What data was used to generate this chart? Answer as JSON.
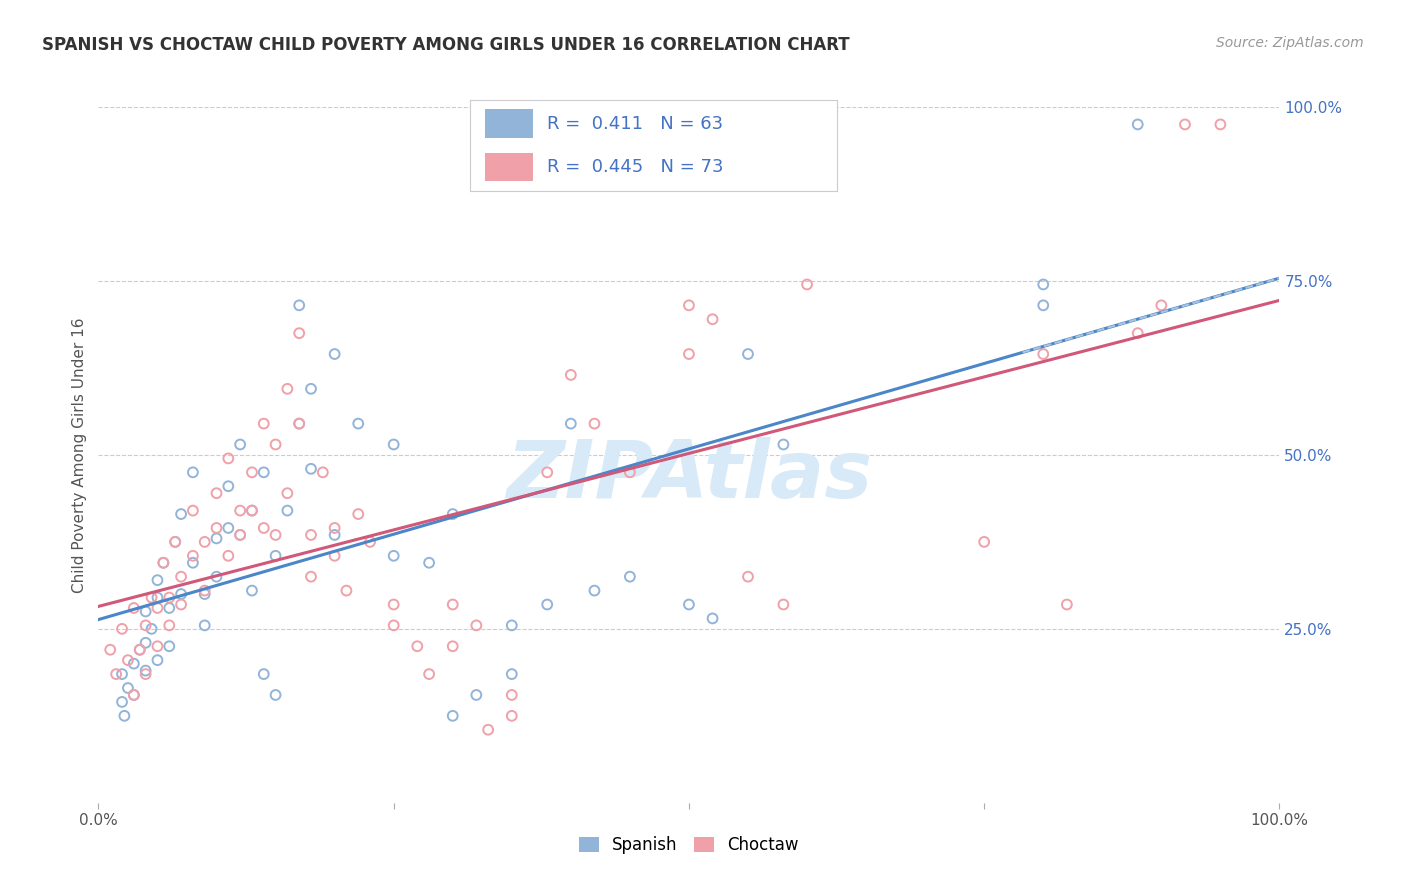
{
  "title": "SPANISH VS CHOCTAW CHILD POVERTY AMONG GIRLS UNDER 16 CORRELATION CHART",
  "source": "Source: ZipAtlas.com",
  "ylabel": "Child Poverty Among Girls Under 16",
  "xlim": [
    0,
    1
  ],
  "ylim": [
    0,
    1
  ],
  "ytick_labels_right": [
    "25.0%",
    "50.0%",
    "75.0%",
    "100.0%"
  ],
  "ytick_vals_right": [
    0.25,
    0.5,
    0.75,
    1.0
  ],
  "spanish_R": 0.411,
  "spanish_N": 63,
  "choctaw_R": 0.445,
  "choctaw_N": 73,
  "spanish_color": "#92b4d8",
  "choctaw_color": "#f0a0a8",
  "trend_spanish_color": "#4a86c8",
  "trend_choctaw_color": "#d05878",
  "trend_dashed_color": "#aac4dd",
  "label_blue": "#4472c4",
  "watermark_color": "#d8eaf8",
  "background_color": "#ffffff",
  "spanish_points": [
    [
      0.02,
      0.185
    ],
    [
      0.02,
      0.145
    ],
    [
      0.022,
      0.125
    ],
    [
      0.025,
      0.165
    ],
    [
      0.03,
      0.2
    ],
    [
      0.03,
      0.155
    ],
    [
      0.035,
      0.22
    ],
    [
      0.04,
      0.275
    ],
    [
      0.04,
      0.23
    ],
    [
      0.04,
      0.19
    ],
    [
      0.045,
      0.25
    ],
    [
      0.05,
      0.295
    ],
    [
      0.05,
      0.205
    ],
    [
      0.05,
      0.32
    ],
    [
      0.055,
      0.345
    ],
    [
      0.06,
      0.28
    ],
    [
      0.06,
      0.225
    ],
    [
      0.065,
      0.375
    ],
    [
      0.07,
      0.415
    ],
    [
      0.07,
      0.3
    ],
    [
      0.08,
      0.475
    ],
    [
      0.08,
      0.345
    ],
    [
      0.09,
      0.3
    ],
    [
      0.09,
      0.255
    ],
    [
      0.1,
      0.38
    ],
    [
      0.1,
      0.325
    ],
    [
      0.11,
      0.455
    ],
    [
      0.11,
      0.395
    ],
    [
      0.12,
      0.385
    ],
    [
      0.12,
      0.515
    ],
    [
      0.13,
      0.42
    ],
    [
      0.13,
      0.305
    ],
    [
      0.14,
      0.475
    ],
    [
      0.14,
      0.185
    ],
    [
      0.15,
      0.155
    ],
    [
      0.15,
      0.355
    ],
    [
      0.16,
      0.42
    ],
    [
      0.17,
      0.715
    ],
    [
      0.17,
      0.545
    ],
    [
      0.18,
      0.48
    ],
    [
      0.18,
      0.595
    ],
    [
      0.2,
      0.385
    ],
    [
      0.2,
      0.645
    ],
    [
      0.22,
      0.545
    ],
    [
      0.25,
      0.515
    ],
    [
      0.25,
      0.355
    ],
    [
      0.28,
      0.345
    ],
    [
      0.3,
      0.415
    ],
    [
      0.3,
      0.125
    ],
    [
      0.32,
      0.155
    ],
    [
      0.35,
      0.185
    ],
    [
      0.35,
      0.255
    ],
    [
      0.38,
      0.285
    ],
    [
      0.4,
      0.545
    ],
    [
      0.42,
      0.305
    ],
    [
      0.45,
      0.325
    ],
    [
      0.5,
      0.285
    ],
    [
      0.52,
      0.265
    ],
    [
      0.55,
      0.645
    ],
    [
      0.58,
      0.515
    ],
    [
      0.8,
      0.715
    ],
    [
      0.8,
      0.745
    ],
    [
      0.88,
      0.975
    ]
  ],
  "choctaw_points": [
    [
      0.01,
      0.22
    ],
    [
      0.015,
      0.185
    ],
    [
      0.02,
      0.25
    ],
    [
      0.025,
      0.205
    ],
    [
      0.03,
      0.28
    ],
    [
      0.03,
      0.155
    ],
    [
      0.035,
      0.22
    ],
    [
      0.04,
      0.185
    ],
    [
      0.04,
      0.255
    ],
    [
      0.045,
      0.295
    ],
    [
      0.05,
      0.225
    ],
    [
      0.05,
      0.28
    ],
    [
      0.055,
      0.345
    ],
    [
      0.06,
      0.295
    ],
    [
      0.06,
      0.255
    ],
    [
      0.065,
      0.375
    ],
    [
      0.07,
      0.325
    ],
    [
      0.07,
      0.285
    ],
    [
      0.08,
      0.42
    ],
    [
      0.08,
      0.355
    ],
    [
      0.09,
      0.375
    ],
    [
      0.09,
      0.305
    ],
    [
      0.1,
      0.445
    ],
    [
      0.1,
      0.395
    ],
    [
      0.11,
      0.495
    ],
    [
      0.11,
      0.355
    ],
    [
      0.12,
      0.42
    ],
    [
      0.12,
      0.385
    ],
    [
      0.13,
      0.475
    ],
    [
      0.13,
      0.42
    ],
    [
      0.14,
      0.545
    ],
    [
      0.14,
      0.395
    ],
    [
      0.15,
      0.515
    ],
    [
      0.15,
      0.385
    ],
    [
      0.16,
      0.595
    ],
    [
      0.16,
      0.445
    ],
    [
      0.17,
      0.675
    ],
    [
      0.17,
      0.545
    ],
    [
      0.18,
      0.385
    ],
    [
      0.18,
      0.325
    ],
    [
      0.19,
      0.475
    ],
    [
      0.2,
      0.395
    ],
    [
      0.2,
      0.355
    ],
    [
      0.21,
      0.305
    ],
    [
      0.22,
      0.415
    ],
    [
      0.23,
      0.375
    ],
    [
      0.25,
      0.285
    ],
    [
      0.25,
      0.255
    ],
    [
      0.27,
      0.225
    ],
    [
      0.28,
      0.185
    ],
    [
      0.3,
      0.285
    ],
    [
      0.3,
      0.225
    ],
    [
      0.32,
      0.255
    ],
    [
      0.33,
      0.105
    ],
    [
      0.35,
      0.155
    ],
    [
      0.35,
      0.125
    ],
    [
      0.38,
      0.475
    ],
    [
      0.4,
      0.615
    ],
    [
      0.42,
      0.545
    ],
    [
      0.45,
      0.475
    ],
    [
      0.5,
      0.715
    ],
    [
      0.5,
      0.645
    ],
    [
      0.52,
      0.695
    ],
    [
      0.55,
      0.325
    ],
    [
      0.58,
      0.285
    ],
    [
      0.6,
      0.745
    ],
    [
      0.75,
      0.375
    ],
    [
      0.8,
      0.645
    ],
    [
      0.82,
      0.285
    ],
    [
      0.88,
      0.675
    ],
    [
      0.9,
      0.715
    ],
    [
      0.92,
      0.975
    ],
    [
      0.95,
      0.975
    ]
  ]
}
